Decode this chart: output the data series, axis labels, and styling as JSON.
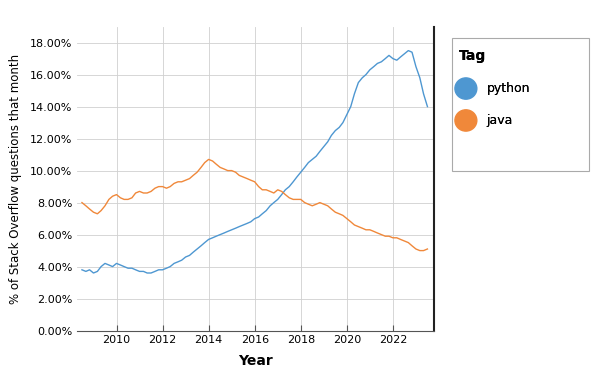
{
  "title": "",
  "xlabel": "Year",
  "ylabel": "% of Stack Overflow questions that month",
  "legend_title": "Tag",
  "python_label": "python",
  "java_label": "java",
  "python_color": "#4E97D1",
  "java_color": "#F0883A",
  "ylim": [
    0.0,
    0.19
  ],
  "yticks": [
    0.0,
    0.02,
    0.04,
    0.06,
    0.08,
    0.1,
    0.12,
    0.14,
    0.16,
    0.18
  ],
  "ytick_labels": [
    "0.00%",
    "2.00%",
    "4.00%",
    "6.00%",
    "8.00%",
    "10.00%",
    "12.00%",
    "14.00%",
    "16.00%",
    "18.00%"
  ],
  "background_color": "#FFFFFF",
  "grid_color": "#D0D0D0",
  "python_data": [
    [
      2008.5,
      0.038
    ],
    [
      2008.67,
      0.037
    ],
    [
      2008.83,
      0.038
    ],
    [
      2009.0,
      0.036
    ],
    [
      2009.17,
      0.037
    ],
    [
      2009.33,
      0.04
    ],
    [
      2009.5,
      0.042
    ],
    [
      2009.67,
      0.041
    ],
    [
      2009.83,
      0.04
    ],
    [
      2010.0,
      0.042
    ],
    [
      2010.17,
      0.041
    ],
    [
      2010.33,
      0.04
    ],
    [
      2010.5,
      0.039
    ],
    [
      2010.67,
      0.039
    ],
    [
      2010.83,
      0.038
    ],
    [
      2011.0,
      0.037
    ],
    [
      2011.17,
      0.037
    ],
    [
      2011.33,
      0.036
    ],
    [
      2011.5,
      0.036
    ],
    [
      2011.67,
      0.037
    ],
    [
      2011.83,
      0.038
    ],
    [
      2012.0,
      0.038
    ],
    [
      2012.17,
      0.039
    ],
    [
      2012.33,
      0.04
    ],
    [
      2012.5,
      0.042
    ],
    [
      2012.67,
      0.043
    ],
    [
      2012.83,
      0.044
    ],
    [
      2013.0,
      0.046
    ],
    [
      2013.17,
      0.047
    ],
    [
      2013.33,
      0.049
    ],
    [
      2013.5,
      0.051
    ],
    [
      2013.67,
      0.053
    ],
    [
      2013.83,
      0.055
    ],
    [
      2014.0,
      0.057
    ],
    [
      2014.17,
      0.058
    ],
    [
      2014.33,
      0.059
    ],
    [
      2014.5,
      0.06
    ],
    [
      2014.67,
      0.061
    ],
    [
      2014.83,
      0.062
    ],
    [
      2015.0,
      0.063
    ],
    [
      2015.17,
      0.064
    ],
    [
      2015.33,
      0.065
    ],
    [
      2015.5,
      0.066
    ],
    [
      2015.67,
      0.067
    ],
    [
      2015.83,
      0.068
    ],
    [
      2016.0,
      0.07
    ],
    [
      2016.17,
      0.071
    ],
    [
      2016.33,
      0.073
    ],
    [
      2016.5,
      0.075
    ],
    [
      2016.67,
      0.078
    ],
    [
      2016.83,
      0.08
    ],
    [
      2017.0,
      0.082
    ],
    [
      2017.17,
      0.085
    ],
    [
      2017.33,
      0.088
    ],
    [
      2017.5,
      0.09
    ],
    [
      2017.67,
      0.093
    ],
    [
      2017.83,
      0.096
    ],
    [
      2018.0,
      0.099
    ],
    [
      2018.17,
      0.102
    ],
    [
      2018.33,
      0.105
    ],
    [
      2018.5,
      0.107
    ],
    [
      2018.67,
      0.109
    ],
    [
      2018.83,
      0.112
    ],
    [
      2019.0,
      0.115
    ],
    [
      2019.17,
      0.118
    ],
    [
      2019.33,
      0.122
    ],
    [
      2019.5,
      0.125
    ],
    [
      2019.67,
      0.127
    ],
    [
      2019.83,
      0.13
    ],
    [
      2020.0,
      0.135
    ],
    [
      2020.17,
      0.14
    ],
    [
      2020.33,
      0.148
    ],
    [
      2020.5,
      0.155
    ],
    [
      2020.67,
      0.158
    ],
    [
      2020.83,
      0.16
    ],
    [
      2021.0,
      0.163
    ],
    [
      2021.17,
      0.165
    ],
    [
      2021.33,
      0.167
    ],
    [
      2021.5,
      0.168
    ],
    [
      2021.67,
      0.17
    ],
    [
      2021.83,
      0.172
    ],
    [
      2022.0,
      0.17
    ],
    [
      2022.17,
      0.169
    ],
    [
      2022.33,
      0.171
    ],
    [
      2022.5,
      0.173
    ],
    [
      2022.67,
      0.175
    ],
    [
      2022.83,
      0.174
    ],
    [
      2023.0,
      0.165
    ],
    [
      2023.17,
      0.158
    ],
    [
      2023.33,
      0.148
    ],
    [
      2023.5,
      0.14
    ]
  ],
  "java_data": [
    [
      2008.5,
      0.08
    ],
    [
      2008.67,
      0.078
    ],
    [
      2008.83,
      0.076
    ],
    [
      2009.0,
      0.074
    ],
    [
      2009.17,
      0.073
    ],
    [
      2009.33,
      0.075
    ],
    [
      2009.5,
      0.078
    ],
    [
      2009.67,
      0.082
    ],
    [
      2009.83,
      0.084
    ],
    [
      2010.0,
      0.085
    ],
    [
      2010.17,
      0.083
    ],
    [
      2010.33,
      0.082
    ],
    [
      2010.5,
      0.082
    ],
    [
      2010.67,
      0.083
    ],
    [
      2010.83,
      0.086
    ],
    [
      2011.0,
      0.087
    ],
    [
      2011.17,
      0.086
    ],
    [
      2011.33,
      0.086
    ],
    [
      2011.5,
      0.087
    ],
    [
      2011.67,
      0.089
    ],
    [
      2011.83,
      0.09
    ],
    [
      2012.0,
      0.09
    ],
    [
      2012.17,
      0.089
    ],
    [
      2012.33,
      0.09
    ],
    [
      2012.5,
      0.092
    ],
    [
      2012.67,
      0.093
    ],
    [
      2012.83,
      0.093
    ],
    [
      2013.0,
      0.094
    ],
    [
      2013.17,
      0.095
    ],
    [
      2013.33,
      0.097
    ],
    [
      2013.5,
      0.099
    ],
    [
      2013.67,
      0.102
    ],
    [
      2013.83,
      0.105
    ],
    [
      2014.0,
      0.107
    ],
    [
      2014.17,
      0.106
    ],
    [
      2014.33,
      0.104
    ],
    [
      2014.5,
      0.102
    ],
    [
      2014.67,
      0.101
    ],
    [
      2014.83,
      0.1
    ],
    [
      2015.0,
      0.1
    ],
    [
      2015.17,
      0.099
    ],
    [
      2015.33,
      0.097
    ],
    [
      2015.5,
      0.096
    ],
    [
      2015.67,
      0.095
    ],
    [
      2015.83,
      0.094
    ],
    [
      2016.0,
      0.093
    ],
    [
      2016.17,
      0.09
    ],
    [
      2016.33,
      0.088
    ],
    [
      2016.5,
      0.088
    ],
    [
      2016.67,
      0.087
    ],
    [
      2016.83,
      0.086
    ],
    [
      2017.0,
      0.088
    ],
    [
      2017.17,
      0.087
    ],
    [
      2017.33,
      0.085
    ],
    [
      2017.5,
      0.083
    ],
    [
      2017.67,
      0.082
    ],
    [
      2017.83,
      0.082
    ],
    [
      2018.0,
      0.082
    ],
    [
      2018.17,
      0.08
    ],
    [
      2018.33,
      0.079
    ],
    [
      2018.5,
      0.078
    ],
    [
      2018.67,
      0.079
    ],
    [
      2018.83,
      0.08
    ],
    [
      2019.0,
      0.079
    ],
    [
      2019.17,
      0.078
    ],
    [
      2019.33,
      0.076
    ],
    [
      2019.5,
      0.074
    ],
    [
      2019.67,
      0.073
    ],
    [
      2019.83,
      0.072
    ],
    [
      2020.0,
      0.07
    ],
    [
      2020.17,
      0.068
    ],
    [
      2020.33,
      0.066
    ],
    [
      2020.5,
      0.065
    ],
    [
      2020.67,
      0.064
    ],
    [
      2020.83,
      0.063
    ],
    [
      2021.0,
      0.063
    ],
    [
      2021.17,
      0.062
    ],
    [
      2021.33,
      0.061
    ],
    [
      2021.5,
      0.06
    ],
    [
      2021.67,
      0.059
    ],
    [
      2021.83,
      0.059
    ],
    [
      2022.0,
      0.058
    ],
    [
      2022.17,
      0.058
    ],
    [
      2022.33,
      0.057
    ],
    [
      2022.5,
      0.056
    ],
    [
      2022.67,
      0.055
    ],
    [
      2022.83,
      0.053
    ],
    [
      2023.0,
      0.051
    ],
    [
      2023.17,
      0.05
    ],
    [
      2023.33,
      0.05
    ],
    [
      2023.5,
      0.051
    ]
  ],
  "xticks": [
    2010,
    2012,
    2014,
    2016,
    2018,
    2020,
    2022
  ],
  "xlim": [
    2008.3,
    2023.8
  ],
  "line_width": 1.0
}
